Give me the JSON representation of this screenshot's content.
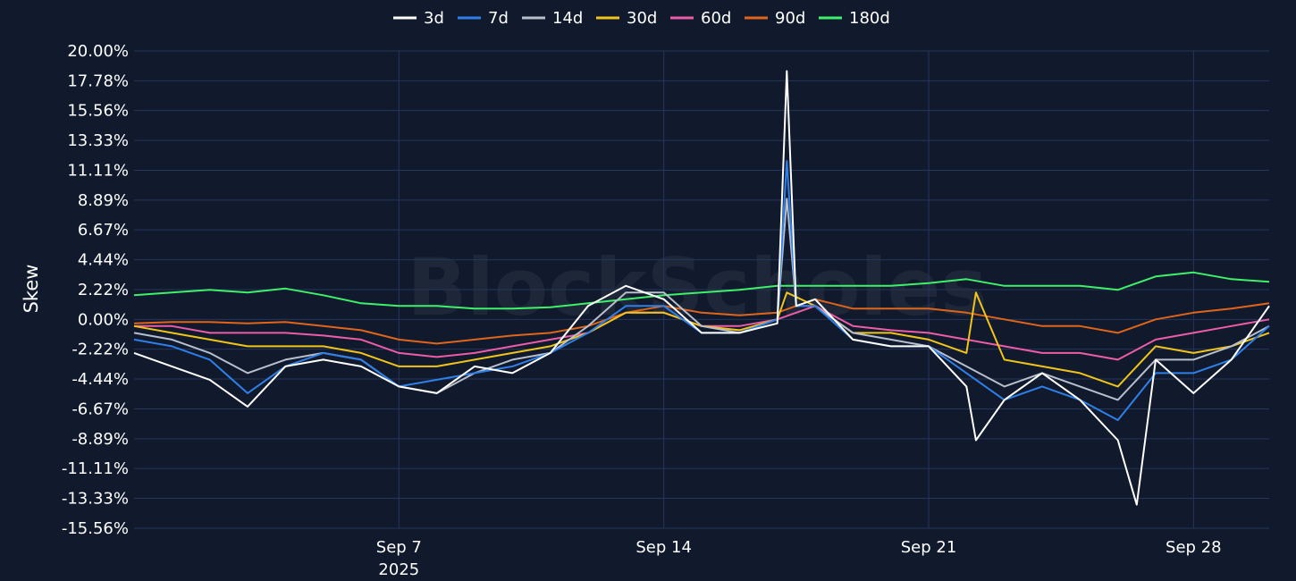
{
  "chart_data": {
    "type": "line",
    "title": "",
    "ylabel": "Skew",
    "xlabel": "",
    "watermark": "BlockScholes",
    "ylim": [
      -15.56,
      20.0
    ],
    "y_ticks": [
      "20.00%",
      "17.78%",
      "15.56%",
      "13.33%",
      "11.11%",
      "8.89%",
      "6.67%",
      "4.44%",
      "2.22%",
      "0.00%",
      "-2.22%",
      "-4.44%",
      "-6.67%",
      "-8.89%",
      "-11.11%",
      "-13.33%",
      "-15.56%"
    ],
    "x_range": [
      "2025-08-31",
      "2025-09-30"
    ],
    "x_ticks": [
      {
        "date": "2025-09-07",
        "label": "Sep 7",
        "sublabel": "2025"
      },
      {
        "date": "2025-09-14",
        "label": "Sep 14",
        "sublabel": ""
      },
      {
        "date": "2025-09-21",
        "label": "Sep 21",
        "sublabel": ""
      },
      {
        "date": "2025-09-28",
        "label": "Sep 28",
        "sublabel": ""
      }
    ],
    "grid": true,
    "legend_position": "top-center",
    "colors": {
      "background": "#101a2c",
      "grid": "#26365a",
      "text": "#ffffff"
    },
    "series": [
      {
        "name": "3d",
        "color": "#ffffff",
        "points": [
          [
            "2025-08-31",
            -2.5
          ],
          [
            "2025-09-01",
            -3.5
          ],
          [
            "2025-09-02",
            -4.5
          ],
          [
            "2025-09-03",
            -6.5
          ],
          [
            "2025-09-04",
            -3.5
          ],
          [
            "2025-09-05",
            -3
          ],
          [
            "2025-09-06",
            -3.5
          ],
          [
            "2025-09-07",
            -5
          ],
          [
            "2025-09-08",
            -5.5
          ],
          [
            "2025-09-09",
            -3.5
          ],
          [
            "2025-09-10",
            -4
          ],
          [
            "2025-09-11",
            -2.5
          ],
          [
            "2025-09-12",
            1
          ],
          [
            "2025-09-13",
            2.5
          ],
          [
            "2025-09-14",
            1.5
          ],
          [
            "2025-09-15",
            -1
          ],
          [
            "2025-09-16",
            -1
          ],
          [
            "2025-09-17",
            -0.3
          ],
          [
            "2025-09-17 06:00",
            18.5
          ],
          [
            "2025-09-17 12:00",
            1
          ],
          [
            "2025-09-18",
            1.5
          ],
          [
            "2025-09-19",
            -1.5
          ],
          [
            "2025-09-20",
            -2
          ],
          [
            "2025-09-21",
            -2
          ],
          [
            "2025-09-22",
            -5
          ],
          [
            "2025-09-22 06:00",
            -9
          ],
          [
            "2025-09-23",
            -6
          ],
          [
            "2025-09-24",
            -4
          ],
          [
            "2025-09-25",
            -6
          ],
          [
            "2025-09-26",
            -9
          ],
          [
            "2025-09-26 12:00",
            -13.8
          ],
          [
            "2025-09-27",
            -3
          ],
          [
            "2025-09-28",
            -5.5
          ],
          [
            "2025-09-29",
            -3
          ],
          [
            "2025-09-30",
            1
          ]
        ]
      },
      {
        "name": "7d",
        "color": "#2f7fe8",
        "points": [
          [
            "2025-08-31",
            -1.5
          ],
          [
            "2025-09-01",
            -2
          ],
          [
            "2025-09-02",
            -3
          ],
          [
            "2025-09-03",
            -5.5
          ],
          [
            "2025-09-04",
            -3.5
          ],
          [
            "2025-09-05",
            -2.5
          ],
          [
            "2025-09-06",
            -3
          ],
          [
            "2025-09-07",
            -5
          ],
          [
            "2025-09-08",
            -4.5
          ],
          [
            "2025-09-09",
            -4
          ],
          [
            "2025-09-10",
            -3.5
          ],
          [
            "2025-09-11",
            -2.5
          ],
          [
            "2025-09-12",
            -1
          ],
          [
            "2025-09-13",
            1
          ],
          [
            "2025-09-14",
            1
          ],
          [
            "2025-09-15",
            -1
          ],
          [
            "2025-09-16",
            -1
          ],
          [
            "2025-09-17",
            0
          ],
          [
            "2025-09-17 06:00",
            11.8
          ],
          [
            "2025-09-17 12:00",
            1
          ],
          [
            "2025-09-18",
            1
          ],
          [
            "2025-09-19",
            -1.5
          ],
          [
            "2025-09-20",
            -2
          ],
          [
            "2025-09-21",
            -2
          ],
          [
            "2025-09-22",
            -4
          ],
          [
            "2025-09-23",
            -6
          ],
          [
            "2025-09-24",
            -5
          ],
          [
            "2025-09-25",
            -6
          ],
          [
            "2025-09-26",
            -7.5
          ],
          [
            "2025-09-27",
            -4
          ],
          [
            "2025-09-28",
            -4
          ],
          [
            "2025-09-29",
            -3
          ],
          [
            "2025-09-30",
            -0.5
          ]
        ]
      },
      {
        "name": "14d",
        "color": "#b8bfcc",
        "points": [
          [
            "2025-08-31",
            -1
          ],
          [
            "2025-09-01",
            -1.5
          ],
          [
            "2025-09-02",
            -2.5
          ],
          [
            "2025-09-03",
            -4
          ],
          [
            "2025-09-04",
            -3
          ],
          [
            "2025-09-05",
            -2.5
          ],
          [
            "2025-09-06",
            -3
          ],
          [
            "2025-09-07",
            -5
          ],
          [
            "2025-09-08",
            -5.5
          ],
          [
            "2025-09-09",
            -4
          ],
          [
            "2025-09-10",
            -3
          ],
          [
            "2025-09-11",
            -2.5
          ],
          [
            "2025-09-12",
            -0.5
          ],
          [
            "2025-09-13",
            2
          ],
          [
            "2025-09-14",
            2
          ],
          [
            "2025-09-15",
            -0.5
          ],
          [
            "2025-09-16",
            -1
          ],
          [
            "2025-09-17",
            0
          ],
          [
            "2025-09-17 06:00",
            9
          ],
          [
            "2025-09-17 12:00",
            1
          ],
          [
            "2025-09-18",
            1
          ],
          [
            "2025-09-19",
            -1
          ],
          [
            "2025-09-20",
            -1.5
          ],
          [
            "2025-09-21",
            -2
          ],
          [
            "2025-09-22",
            -3.5
          ],
          [
            "2025-09-23",
            -5
          ],
          [
            "2025-09-24",
            -4
          ],
          [
            "2025-09-25",
            -5
          ],
          [
            "2025-09-26",
            -6
          ],
          [
            "2025-09-27",
            -3
          ],
          [
            "2025-09-28",
            -3
          ],
          [
            "2025-09-29",
            -2
          ],
          [
            "2025-09-30",
            -0.5
          ]
        ]
      },
      {
        "name": "30d",
        "color": "#f0c419",
        "points": [
          [
            "2025-08-31",
            -0.5
          ],
          [
            "2025-09-01",
            -1
          ],
          [
            "2025-09-02",
            -1.5
          ],
          [
            "2025-09-03",
            -2
          ],
          [
            "2025-09-04",
            -2
          ],
          [
            "2025-09-05",
            -2
          ],
          [
            "2025-09-06",
            -2.5
          ],
          [
            "2025-09-07",
            -3.5
          ],
          [
            "2025-09-08",
            -3.5
          ],
          [
            "2025-09-09",
            -3
          ],
          [
            "2025-09-10",
            -2.5
          ],
          [
            "2025-09-11",
            -2
          ],
          [
            "2025-09-12",
            -1
          ],
          [
            "2025-09-13",
            0.5
          ],
          [
            "2025-09-14",
            0.5
          ],
          [
            "2025-09-15",
            -0.5
          ],
          [
            "2025-09-16",
            -0.8
          ],
          [
            "2025-09-17",
            0
          ],
          [
            "2025-09-17 06:00",
            2
          ],
          [
            "2025-09-18",
            1
          ],
          [
            "2025-09-19",
            -1
          ],
          [
            "2025-09-20",
            -1
          ],
          [
            "2025-09-21",
            -1.5
          ],
          [
            "2025-09-22",
            -2.5
          ],
          [
            "2025-09-22 06:00",
            2
          ],
          [
            "2025-09-23",
            -3
          ],
          [
            "2025-09-24",
            -3.5
          ],
          [
            "2025-09-25",
            -4
          ],
          [
            "2025-09-26",
            -5
          ],
          [
            "2025-09-27",
            -2
          ],
          [
            "2025-09-28",
            -2.5
          ],
          [
            "2025-09-29",
            -2
          ],
          [
            "2025-09-30",
            -1
          ]
        ]
      },
      {
        "name": "60d",
        "color": "#ec5ca8",
        "points": [
          [
            "2025-08-31",
            -0.5
          ],
          [
            "2025-09-01",
            -0.5
          ],
          [
            "2025-09-02",
            -1
          ],
          [
            "2025-09-03",
            -1
          ],
          [
            "2025-09-04",
            -1
          ],
          [
            "2025-09-05",
            -1.2
          ],
          [
            "2025-09-06",
            -1.5
          ],
          [
            "2025-09-07",
            -2.5
          ],
          [
            "2025-09-08",
            -2.8
          ],
          [
            "2025-09-09",
            -2.5
          ],
          [
            "2025-09-10",
            -2
          ],
          [
            "2025-09-11",
            -1.5
          ],
          [
            "2025-09-12",
            -1
          ],
          [
            "2025-09-13",
            0.5
          ],
          [
            "2025-09-14",
            0.5
          ],
          [
            "2025-09-15",
            -0.5
          ],
          [
            "2025-09-16",
            -0.5
          ],
          [
            "2025-09-17",
            0
          ],
          [
            "2025-09-18",
            1
          ],
          [
            "2025-09-19",
            -0.5
          ],
          [
            "2025-09-20",
            -0.8
          ],
          [
            "2025-09-21",
            -1
          ],
          [
            "2025-09-22",
            -1.5
          ],
          [
            "2025-09-23",
            -2
          ],
          [
            "2025-09-24",
            -2.5
          ],
          [
            "2025-09-25",
            -2.5
          ],
          [
            "2025-09-26",
            -3
          ],
          [
            "2025-09-27",
            -1.5
          ],
          [
            "2025-09-28",
            -1
          ],
          [
            "2025-09-29",
            -0.5
          ],
          [
            "2025-09-30",
            0
          ]
        ]
      },
      {
        "name": "90d",
        "color": "#e0651a",
        "points": [
          [
            "2025-08-31",
            -0.3
          ],
          [
            "2025-09-01",
            -0.2
          ],
          [
            "2025-09-02",
            -0.2
          ],
          [
            "2025-09-03",
            -0.3
          ],
          [
            "2025-09-04",
            -0.2
          ],
          [
            "2025-09-05",
            -0.5
          ],
          [
            "2025-09-06",
            -0.8
          ],
          [
            "2025-09-07",
            -1.5
          ],
          [
            "2025-09-08",
            -1.8
          ],
          [
            "2025-09-09",
            -1.5
          ],
          [
            "2025-09-10",
            -1.2
          ],
          [
            "2025-09-11",
            -1
          ],
          [
            "2025-09-12",
            -0.5
          ],
          [
            "2025-09-13",
            0.5
          ],
          [
            "2025-09-14",
            1
          ],
          [
            "2025-09-15",
            0.5
          ],
          [
            "2025-09-16",
            0.3
          ],
          [
            "2025-09-17",
            0.5
          ],
          [
            "2025-09-18",
            1.5
          ],
          [
            "2025-09-19",
            0.8
          ],
          [
            "2025-09-20",
            0.8
          ],
          [
            "2025-09-21",
            0.8
          ],
          [
            "2025-09-22",
            0.5
          ],
          [
            "2025-09-23",
            0
          ],
          [
            "2025-09-24",
            -0.5
          ],
          [
            "2025-09-25",
            -0.5
          ],
          [
            "2025-09-26",
            -1
          ],
          [
            "2025-09-27",
            0
          ],
          [
            "2025-09-28",
            0.5
          ],
          [
            "2025-09-29",
            0.8
          ],
          [
            "2025-09-30",
            1.2
          ]
        ]
      },
      {
        "name": "180d",
        "color": "#3ff06a",
        "points": [
          [
            "2025-08-31",
            1.8
          ],
          [
            "2025-09-01",
            2
          ],
          [
            "2025-09-02",
            2.2
          ],
          [
            "2025-09-03",
            2
          ],
          [
            "2025-09-04",
            2.3
          ],
          [
            "2025-09-05",
            1.8
          ],
          [
            "2025-09-06",
            1.2
          ],
          [
            "2025-09-07",
            1
          ],
          [
            "2025-09-08",
            1
          ],
          [
            "2025-09-09",
            0.8
          ],
          [
            "2025-09-10",
            0.8
          ],
          [
            "2025-09-11",
            0.9
          ],
          [
            "2025-09-12",
            1.2
          ],
          [
            "2025-09-13",
            1.5
          ],
          [
            "2025-09-14",
            1.8
          ],
          [
            "2025-09-15",
            2
          ],
          [
            "2025-09-16",
            2.2
          ],
          [
            "2025-09-17",
            2.5
          ],
          [
            "2025-09-18",
            2.5
          ],
          [
            "2025-09-19",
            2.5
          ],
          [
            "2025-09-20",
            2.5
          ],
          [
            "2025-09-21",
            2.7
          ],
          [
            "2025-09-22",
            3
          ],
          [
            "2025-09-23",
            2.5
          ],
          [
            "2025-09-24",
            2.5
          ],
          [
            "2025-09-25",
            2.5
          ],
          [
            "2025-09-26",
            2.2
          ],
          [
            "2025-09-27",
            3.2
          ],
          [
            "2025-09-28",
            3.5
          ],
          [
            "2025-09-29",
            3
          ],
          [
            "2025-09-30",
            2.8
          ]
        ]
      }
    ]
  }
}
